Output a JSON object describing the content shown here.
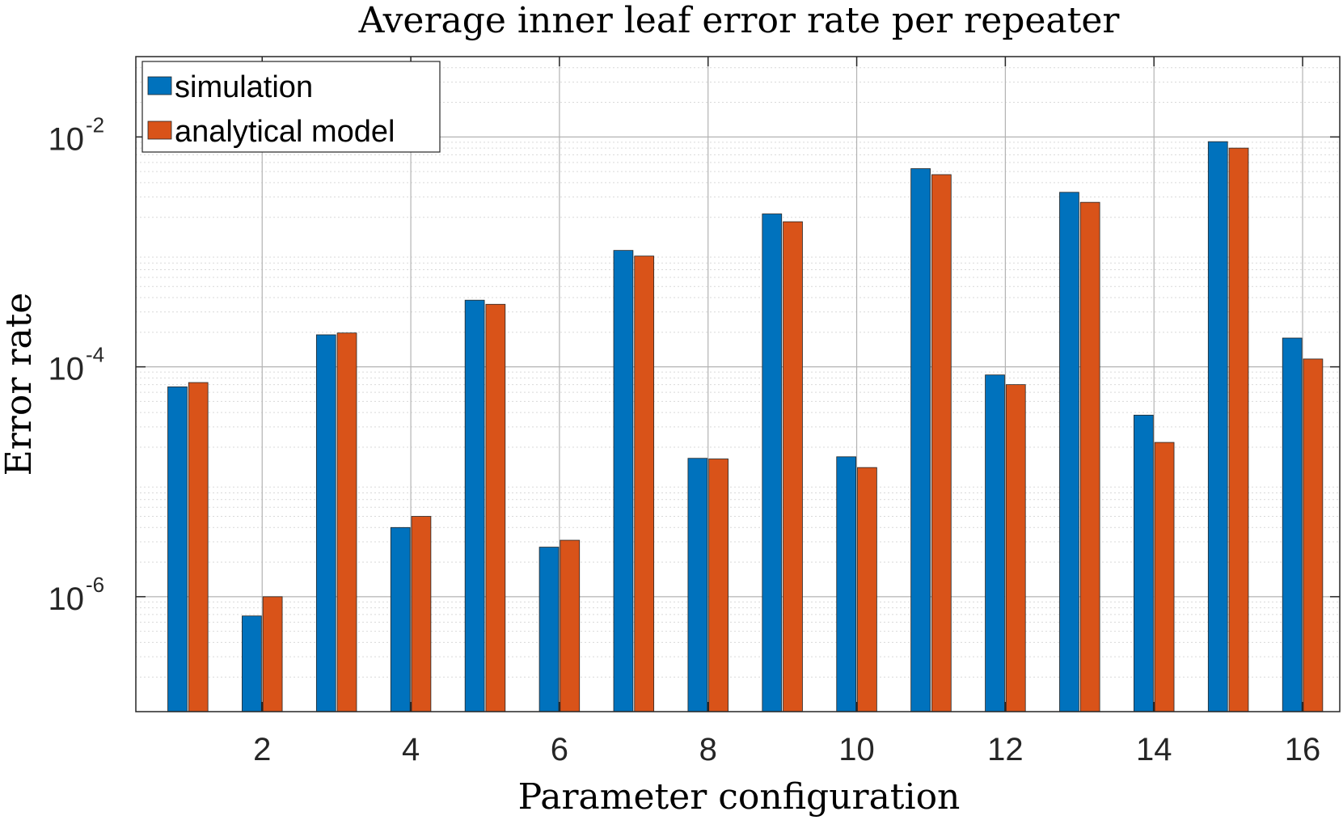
{
  "chart_data": {
    "type": "bar",
    "title": "Average inner leaf error rate per repeater",
    "xlabel": "Parameter configuration",
    "ylabel": "Error rate",
    "yscale": "log",
    "ylim": [
      1e-07,
      0.05
    ],
    "xlim": [
      0.3,
      16.5
    ],
    "grid": true,
    "legend_position": "top-left",
    "categories": [
      1,
      2,
      3,
      4,
      5,
      6,
      7,
      8,
      9,
      10,
      11,
      12,
      13,
      14,
      15,
      16
    ],
    "x_ticks": [
      {
        "value": 2,
        "label": "2"
      },
      {
        "value": 4,
        "label": "4"
      },
      {
        "value": 6,
        "label": "6"
      },
      {
        "value": 8,
        "label": "8"
      },
      {
        "value": 10,
        "label": "10"
      },
      {
        "value": 12,
        "label": "12"
      },
      {
        "value": 14,
        "label": "14"
      },
      {
        "value": 16,
        "label": "16"
      }
    ],
    "y_ticks": [
      {
        "value": 1e-06,
        "base": "10",
        "exponent": "-6"
      },
      {
        "value": 0.0001,
        "base": "10",
        "exponent": "-4"
      },
      {
        "value": 0.01,
        "base": "10",
        "exponent": "-2"
      }
    ],
    "series": [
      {
        "name": "simulation",
        "color": "#0072BD",
        "values": [
          6.7e-05,
          6.8e-07,
          0.00019,
          4e-06,
          0.00038,
          2.7e-06,
          0.00103,
          1.6e-05,
          0.00214,
          1.65e-05,
          0.0053,
          8.5e-05,
          0.0033,
          3.8e-05,
          0.0091,
          0.000178
        ]
      },
      {
        "name": "analytical model",
        "color": "#D95319",
        "values": [
          7.3e-05,
          1e-06,
          0.000197,
          5e-06,
          0.00035,
          3.1e-06,
          0.00092,
          1.58e-05,
          0.00183,
          1.33e-05,
          0.0047,
          7e-05,
          0.0027,
          2.2e-05,
          0.008,
          0.000117
        ]
      }
    ]
  }
}
